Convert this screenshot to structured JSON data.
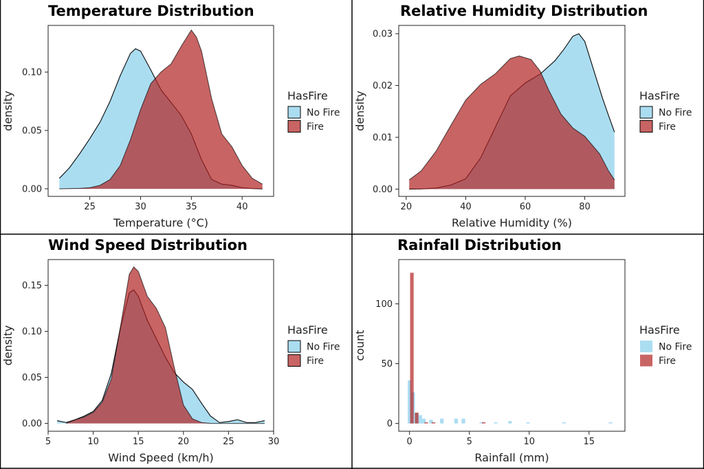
{
  "colors": {
    "no_fire": "#87CEEB",
    "fire": "#B22222"
  },
  "legend": {
    "title": "HasFire",
    "items": [
      "No Fire",
      "Fire"
    ]
  },
  "chart_data": [
    {
      "type": "area",
      "title": "Temperature Distribution",
      "xlabel": "Temperature (°C)",
      "ylabel": "density",
      "xlim": [
        20.9,
        43.1
      ],
      "ylim": [
        -0.0065,
        0.14
      ],
      "xticks": [
        25,
        30,
        35,
        40
      ],
      "yticks": [
        0.0,
        0.05,
        0.1
      ],
      "ytick_labels": [
        "0.00",
        "0.05",
        "0.10"
      ],
      "series": [
        {
          "name": "No Fire",
          "x": [
            22,
            23,
            24,
            25,
            26,
            27,
            28,
            29,
            29.5,
            30,
            31,
            32,
            33,
            34,
            35,
            36,
            37,
            38,
            39,
            40,
            41,
            42
          ],
          "y": [
            0.009,
            0.018,
            0.03,
            0.043,
            0.057,
            0.075,
            0.097,
            0.116,
            0.12,
            0.118,
            0.102,
            0.085,
            0.074,
            0.063,
            0.047,
            0.025,
            0.008,
            0.004,
            0.003,
            0.001,
            0.0002,
            0.0
          ]
        },
        {
          "name": "Fire",
          "x": [
            22,
            24,
            25,
            26,
            27,
            28,
            29,
            30,
            31,
            32,
            33,
            34,
            35,
            35.5,
            36,
            37,
            38,
            39,
            40,
            41,
            42
          ],
          "y": [
            0.0,
            0.0004,
            0.001,
            0.003,
            0.008,
            0.02,
            0.042,
            0.068,
            0.09,
            0.1,
            0.107,
            0.122,
            0.136,
            0.13,
            0.118,
            0.077,
            0.047,
            0.036,
            0.02,
            0.009,
            0.004
          ]
        }
      ]
    },
    {
      "type": "area",
      "title": "Relative Humidity Distribution",
      "xlabel": "Relative Humidity (%)",
      "ylabel": "density",
      "xlim": [
        17.5,
        93.5
      ],
      "ylim": [
        -0.0014,
        0.0316
      ],
      "xticks": [
        20,
        40,
        60,
        80
      ],
      "yticks": [
        0.0,
        0.01,
        0.02,
        0.03
      ],
      "ytick_labels": [
        "0.00",
        "0.01",
        "0.02",
        "0.03"
      ],
      "series": [
        {
          "name": "No Fire",
          "x": [
            21,
            25,
            30,
            35,
            40,
            45,
            50,
            55,
            60,
            65,
            70,
            73,
            76,
            78,
            80,
            83,
            86,
            88,
            90
          ],
          "y": [
            0.0,
            5e-05,
            0.0002,
            0.0008,
            0.002,
            0.006,
            0.012,
            0.018,
            0.0205,
            0.0222,
            0.0248,
            0.027,
            0.0295,
            0.03,
            0.0285,
            0.023,
            0.0175,
            0.0142,
            0.011
          ]
        },
        {
          "name": "Fire",
          "x": [
            21,
            25,
            30,
            35,
            40,
            45,
            50,
            55,
            58,
            62,
            65,
            68,
            72,
            76,
            80,
            85,
            88,
            90
          ],
          "y": [
            0.0018,
            0.0035,
            0.0073,
            0.0123,
            0.0172,
            0.0202,
            0.0223,
            0.0252,
            0.0257,
            0.025,
            0.0228,
            0.019,
            0.0145,
            0.0118,
            0.0102,
            0.0068,
            0.0035,
            0.0018
          ]
        }
      ]
    },
    {
      "type": "area",
      "title": "Wind Speed Distribution",
      "xlabel": "Wind Speed (km/h)",
      "ylabel": "density",
      "xlim": [
        5,
        30
      ],
      "ylim": [
        -0.0085,
        0.178
      ],
      "xticks": [
        5,
        10,
        15,
        20,
        25,
        30
      ],
      "yticks": [
        0.0,
        0.05,
        0.1,
        0.15
      ],
      "ytick_labels": [
        "0.00",
        "0.05",
        "0.10",
        "0.15"
      ],
      "series": [
        {
          "name": "No Fire",
          "x": [
            6,
            7,
            8,
            9,
            10,
            11,
            12,
            13,
            14,
            14.5,
            15,
            16,
            17,
            18,
            19,
            20,
            21,
            22,
            23,
            24,
            25,
            26,
            27,
            28,
            29
          ],
          "y": [
            0.003,
            0.001,
            0.004,
            0.008,
            0.013,
            0.025,
            0.054,
            0.103,
            0.142,
            0.145,
            0.138,
            0.112,
            0.092,
            0.072,
            0.055,
            0.045,
            0.037,
            0.022,
            0.008,
            0.001,
            0.002,
            0.004,
            0.001,
            0.001,
            0.003
          ]
        },
        {
          "name": "Fire",
          "x": [
            7,
            8,
            9,
            10,
            11,
            12,
            13,
            14,
            14.5,
            15,
            16,
            17,
            18,
            19,
            20,
            21,
            22,
            23,
            25,
            29
          ],
          "y": [
            0.0,
            0.004,
            0.007,
            0.012,
            0.023,
            0.048,
            0.104,
            0.162,
            0.17,
            0.165,
            0.138,
            0.125,
            0.104,
            0.06,
            0.02,
            0.005,
            0.001,
            0.0,
            0.0,
            0.0
          ]
        }
      ]
    },
    {
      "type": "bar",
      "title": "Rainfall Distribution",
      "xlabel": "Rainfall (mm)",
      "ylabel": "count",
      "xlim": [
        -0.9,
        18.0
      ],
      "ylim": [
        -6.5,
        137
      ],
      "xticks": [
        0,
        5,
        10,
        15
      ],
      "yticks": [
        0,
        50,
        100
      ],
      "bin_width": 0.3,
      "series": [
        {
          "name": "No Fire",
          "x": [
            0.0,
            0.3,
            0.6,
            0.9,
            1.2,
            1.8,
            2.7,
            3.9,
            4.5,
            6.0,
            7.2,
            8.4,
            9.9,
            12.9,
            16.8
          ],
          "y": [
            36,
            26,
            9,
            7,
            4,
            3,
            4,
            4,
            4,
            1,
            1,
            2,
            1,
            1,
            1
          ]
        },
        {
          "name": "Fire",
          "x": [
            0.2,
            0.6,
            1.4,
            2.0,
            6.2
          ],
          "y": [
            126,
            9,
            1,
            1,
            1
          ]
        }
      ]
    }
  ]
}
